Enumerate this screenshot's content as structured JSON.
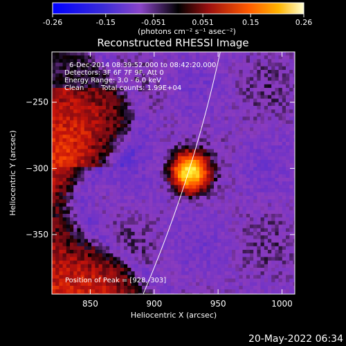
{
  "chart_data": {
    "type": "heatmap",
    "title": "Reconstructed RHESSI Image",
    "colorbar": {
      "range": [
        -0.26,
        0.26
      ],
      "tick_labels": [
        "-0.26",
        "-0.15",
        "-0.051",
        "0.051",
        "0.15",
        "0.26"
      ],
      "tick_values": [
        -0.26,
        -0.15,
        -0.051,
        0.051,
        0.15,
        0.26
      ],
      "unit_label": "(photons cm⁻² s⁻¹ asec⁻²)",
      "colormap": "blue-purple-red-orange-yellow-white"
    },
    "xlabel": "Heliocentric X (arcsec)",
    "ylabel": "Heliocentric Y (arcsec)",
    "xlim": [
      820,
      1010
    ],
    "ylim": [
      -395,
      -212
    ],
    "xticks": [
      850,
      900,
      950,
      1000
    ],
    "xtick_labels": [
      "850",
      "900",
      "950",
      "1000"
    ],
    "yticks": [
      -250,
      -300,
      -350
    ],
    "ytick_labels": [
      "−250",
      "−300",
      "−350"
    ],
    "annotations": [
      "6-Dec-2014 08:39:52.000 to 08:42:20.000",
      "Detectors: 3F 6F 7F 9F, Att 0",
      "Energy Range: 3.0 - 6.0 keV",
      "Clean",
      "Total counts: 1.99E+04"
    ],
    "peak_label": "Position of Peak = [928,-303]",
    "peak": [
      928,
      -303
    ],
    "limb_arc": {
      "center": [
        0,
        0
      ],
      "radius_arcsec": 975
    },
    "source": {
      "x": 928,
      "y": -303,
      "peak_value": 0.26
    }
  },
  "footer": {
    "timestamp": "20-May-2022 06:34"
  },
  "colors": {
    "background": "#000000",
    "foreground": "#ffffff",
    "limb": "#ffffff"
  }
}
